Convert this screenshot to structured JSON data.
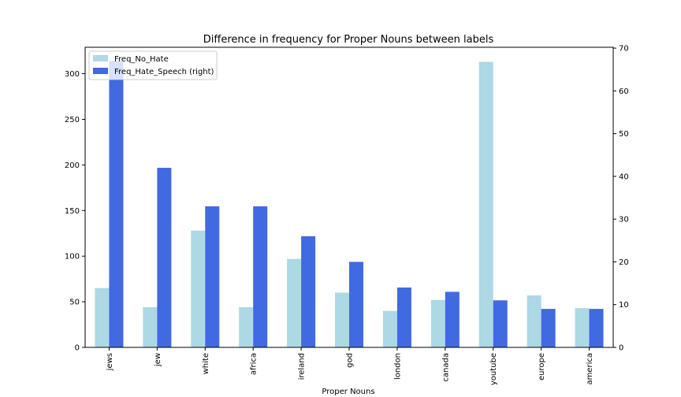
{
  "chart_data": {
    "type": "bar",
    "title": "Difference in frequency for Proper Nouns between labels",
    "xlabel": "Proper Nouns",
    "ylabel": "",
    "ylabel_right": "",
    "categories": [
      "jews",
      "jew",
      "white",
      "africa",
      "ireland",
      "god",
      "london",
      "canada",
      "youtube",
      "europe",
      "america"
    ],
    "series": [
      {
        "name": "Freq_No_Hate",
        "axis": "left",
        "color": "#add8e6",
        "values": [
          65,
          44,
          128,
          44,
          97,
          60,
          40,
          52,
          313,
          57,
          43
        ]
      },
      {
        "name": "Freq_Hate_Speech (right)",
        "axis": "right",
        "color": "#4169e1",
        "values": [
          67,
          42,
          33,
          33,
          26,
          20,
          14,
          13,
          11,
          9,
          9
        ]
      }
    ],
    "ylim": [
      0,
      329
    ],
    "ylim_right": [
      0,
      70.2
    ],
    "yticks": [
      "0",
      "50",
      "100",
      "150",
      "200",
      "250",
      "300"
    ],
    "yticks_right": [
      "0",
      "10",
      "20",
      "30",
      "40",
      "50",
      "60",
      "70"
    ],
    "legend_position": "top-left",
    "grid": false
  }
}
